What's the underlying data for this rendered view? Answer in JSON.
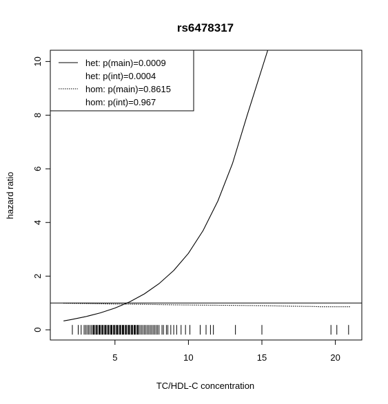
{
  "chart_data": {
    "type": "line",
    "title": "rs6478317",
    "xlabel": "TC/HDL-C concentration",
    "ylabel": "hazard ratio",
    "xlim": [
      0.6,
      21.8
    ],
    "ylim": [
      -0.38,
      10.42
    ],
    "x_ticks": [
      5,
      10,
      15,
      20
    ],
    "x_tick_labels": [
      "5",
      "10",
      "15",
      "20"
    ],
    "y_ticks": [
      0,
      2,
      4,
      6,
      8,
      10
    ],
    "y_tick_labels": [
      "0",
      "2",
      "4",
      "6",
      "8",
      "10"
    ],
    "grid": false,
    "legend_position": "top-left",
    "legend": [
      {
        "label": "het: p(main)=0.0009",
        "line": "solid"
      },
      {
        "label": "het: p(int)=0.0004",
        "line": "none"
      },
      {
        "label": "hom: p(main)=0.8615",
        "line": "dotted"
      },
      {
        "label": "hom: p(int)=0.967",
        "line": "none"
      }
    ],
    "reference_line": {
      "y": 1,
      "style": "solid"
    },
    "series": [
      {
        "line": "solid",
        "x": [
          1.5,
          2,
          3,
          4,
          5,
          6,
          7,
          8,
          9,
          10,
          11,
          12,
          13,
          14,
          15.4
        ],
        "y": [
          0.33,
          0.38,
          0.49,
          0.63,
          0.81,
          1.04,
          1.34,
          1.72,
          2.21,
          2.85,
          3.7,
          4.8,
          6.2,
          8.0,
          10.42
        ]
      },
      {
        "line": "dotted",
        "x": [
          1.5,
          3,
          5,
          7,
          9,
          11,
          13,
          15,
          17,
          18.5,
          19,
          21
        ],
        "y": [
          0.99,
          0.98,
          0.96,
          0.95,
          0.93,
          0.92,
          0.91,
          0.9,
          0.88,
          0.87,
          0.86,
          0.86
        ]
      }
    ],
    "rug": {
      "y": 0,
      "x": [
        2.1,
        2.5,
        2.7,
        2.9,
        3.0,
        3.1,
        3.2,
        3.3,
        3.4,
        3.5,
        3.55,
        3.6,
        3.7,
        3.75,
        3.8,
        3.9,
        3.95,
        4.0,
        4.1,
        4.15,
        4.2,
        4.3,
        4.35,
        4.4,
        4.5,
        4.55,
        4.6,
        4.7,
        4.75,
        4.8,
        4.9,
        4.95,
        5.0,
        5.1,
        5.15,
        5.2,
        5.3,
        5.35,
        5.4,
        5.5,
        5.55,
        5.6,
        5.7,
        5.75,
        5.8,
        5.9,
        5.95,
        6.0,
        6.1,
        6.15,
        6.2,
        6.3,
        6.35,
        6.4,
        6.5,
        6.55,
        6.6,
        6.7,
        6.8,
        6.9,
        7.0,
        7.1,
        7.2,
        7.3,
        7.4,
        7.5,
        7.6,
        7.7,
        7.8,
        7.9,
        8.0,
        8.2,
        8.3,
        8.5,
        8.6,
        8.8,
        9.0,
        9.2,
        9.5,
        9.8,
        10.1,
        10.8,
        11.2,
        11.5,
        11.7,
        13.2,
        15.0,
        19.7,
        20.1,
        20.9
      ]
    }
  }
}
